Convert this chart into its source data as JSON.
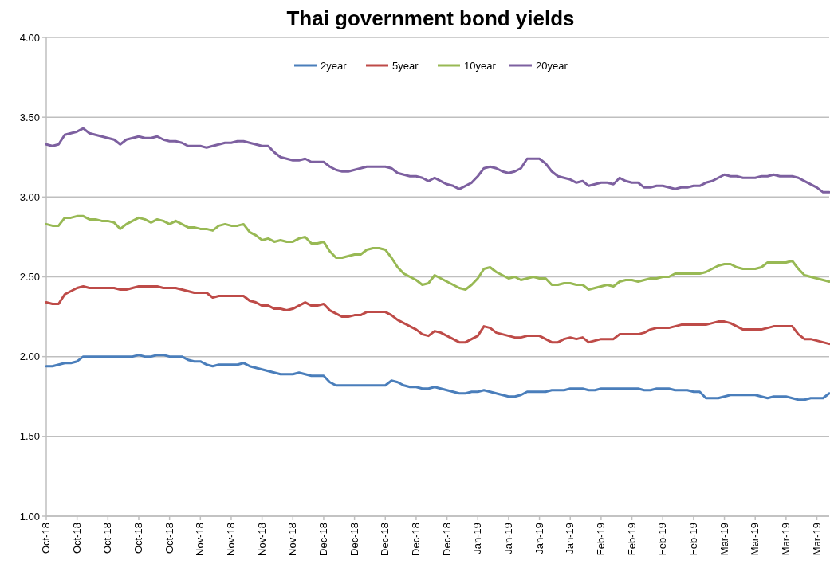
{
  "chart_data": {
    "type": "line",
    "title": "Thai government bond yields",
    "categories": [
      "Oct-18",
      null,
      null,
      null,
      null,
      "Oct-18",
      null,
      null,
      null,
      null,
      "Oct-18",
      null,
      null,
      null,
      null,
      "Oct-18",
      null,
      null,
      null,
      null,
      "Oct-18",
      null,
      null,
      null,
      null,
      "Nov-18",
      null,
      null,
      null,
      null,
      "Nov-18",
      null,
      null,
      null,
      null,
      "Nov-18",
      null,
      null,
      null,
      null,
      "Nov-18",
      null,
      null,
      null,
      null,
      "Dec-18",
      null,
      null,
      null,
      null,
      "Dec-18",
      null,
      null,
      null,
      null,
      "Dec-18",
      null,
      null,
      null,
      null,
      "Dec-18",
      null,
      null,
      null,
      null,
      "Dec-18",
      null,
      null,
      null,
      null,
      "Jan-19",
      null,
      null,
      null,
      null,
      "Jan-19",
      null,
      null,
      null,
      null,
      "Jan-19",
      null,
      null,
      null,
      null,
      "Jan-19",
      null,
      null,
      null,
      null,
      "Feb-19",
      null,
      null,
      null,
      null,
      "Feb-19",
      null,
      null,
      null,
      null,
      "Feb-19",
      null,
      null,
      null,
      null,
      "Feb-19",
      null,
      null,
      null,
      null,
      "Mar-19",
      null,
      null,
      null,
      null,
      "Mar-19",
      null,
      null,
      null,
      null,
      "Mar-19",
      null,
      null,
      null,
      null,
      "Mar-19",
      null,
      null
    ],
    "series": [
      {
        "name": "2year",
        "color": "#4a7ebb",
        "values": [
          1.94,
          1.94,
          1.95,
          1.96,
          1.96,
          1.97,
          2.0,
          2.0,
          2.0,
          2.0,
          2.0,
          2.0,
          2.0,
          2.0,
          2.0,
          2.01,
          2.0,
          2.0,
          2.01,
          2.01,
          2.0,
          2.0,
          2.0,
          1.98,
          1.97,
          1.97,
          1.95,
          1.94,
          1.95,
          1.95,
          1.95,
          1.95,
          1.96,
          1.94,
          1.93,
          1.92,
          1.91,
          1.9,
          1.89,
          1.89,
          1.89,
          1.9,
          1.89,
          1.88,
          1.88,
          1.88,
          1.84,
          1.82,
          1.82,
          1.82,
          1.82,
          1.82,
          1.82,
          1.82,
          1.82,
          1.82,
          1.85,
          1.84,
          1.82,
          1.81,
          1.81,
          1.8,
          1.8,
          1.81,
          1.8,
          1.79,
          1.78,
          1.77,
          1.77,
          1.78,
          1.78,
          1.79,
          1.78,
          1.77,
          1.76,
          1.75,
          1.75,
          1.76,
          1.78,
          1.78,
          1.78,
          1.78,
          1.79,
          1.79,
          1.79,
          1.8,
          1.8,
          1.8,
          1.79,
          1.79,
          1.8,
          1.8,
          1.8,
          1.8,
          1.8,
          1.8,
          1.8,
          1.79,
          1.79,
          1.8,
          1.8,
          1.8,
          1.79,
          1.79,
          1.79,
          1.78,
          1.78,
          1.74,
          1.74,
          1.74,
          1.75,
          1.76,
          1.76,
          1.76,
          1.76,
          1.76,
          1.75,
          1.74,
          1.75,
          1.75,
          1.75,
          1.74,
          1.73,
          1.73,
          1.74,
          1.74,
          1.74,
          1.77
        ]
      },
      {
        "name": "5year",
        "color": "#be4b48",
        "values": [
          2.34,
          2.33,
          2.33,
          2.39,
          2.41,
          2.43,
          2.44,
          2.43,
          2.43,
          2.43,
          2.43,
          2.43,
          2.42,
          2.42,
          2.43,
          2.44,
          2.44,
          2.44,
          2.44,
          2.43,
          2.43,
          2.43,
          2.42,
          2.41,
          2.4,
          2.4,
          2.4,
          2.37,
          2.38,
          2.38,
          2.38,
          2.38,
          2.38,
          2.35,
          2.34,
          2.32,
          2.32,
          2.3,
          2.3,
          2.29,
          2.3,
          2.32,
          2.34,
          2.32,
          2.32,
          2.33,
          2.29,
          2.27,
          2.25,
          2.25,
          2.26,
          2.26,
          2.28,
          2.28,
          2.28,
          2.28,
          2.26,
          2.23,
          2.21,
          2.19,
          2.17,
          2.14,
          2.13,
          2.16,
          2.15,
          2.13,
          2.11,
          2.09,
          2.09,
          2.11,
          2.13,
          2.19,
          2.18,
          2.15,
          2.14,
          2.13,
          2.12,
          2.12,
          2.13,
          2.13,
          2.13,
          2.11,
          2.09,
          2.09,
          2.11,
          2.12,
          2.11,
          2.12,
          2.09,
          2.1,
          2.11,
          2.11,
          2.11,
          2.14,
          2.14,
          2.14,
          2.14,
          2.15,
          2.17,
          2.18,
          2.18,
          2.18,
          2.19,
          2.2,
          2.2,
          2.2,
          2.2,
          2.2,
          2.21,
          2.22,
          2.22,
          2.21,
          2.19,
          2.17,
          2.17,
          2.17,
          2.17,
          2.18,
          2.19,
          2.19,
          2.19,
          2.19,
          2.14,
          2.11,
          2.11,
          2.1,
          2.09,
          2.08
        ]
      },
      {
        "name": "10year",
        "color": "#98b954",
        "values": [
          2.83,
          2.82,
          2.82,
          2.87,
          2.87,
          2.88,
          2.88,
          2.86,
          2.86,
          2.85,
          2.85,
          2.84,
          2.8,
          2.83,
          2.85,
          2.87,
          2.86,
          2.84,
          2.86,
          2.85,
          2.83,
          2.85,
          2.83,
          2.81,
          2.81,
          2.8,
          2.8,
          2.79,
          2.82,
          2.83,
          2.82,
          2.82,
          2.83,
          2.78,
          2.76,
          2.73,
          2.74,
          2.72,
          2.73,
          2.72,
          2.72,
          2.74,
          2.75,
          2.71,
          2.71,
          2.72,
          2.66,
          2.62,
          2.62,
          2.63,
          2.64,
          2.64,
          2.67,
          2.68,
          2.68,
          2.67,
          2.62,
          2.56,
          2.52,
          2.5,
          2.48,
          2.45,
          2.46,
          2.51,
          2.49,
          2.47,
          2.45,
          2.43,
          2.42,
          2.45,
          2.49,
          2.55,
          2.56,
          2.53,
          2.51,
          2.49,
          2.5,
          2.48,
          2.49,
          2.5,
          2.49,
          2.49,
          2.45,
          2.45,
          2.46,
          2.46,
          2.45,
          2.45,
          2.42,
          2.43,
          2.44,
          2.45,
          2.44,
          2.47,
          2.48,
          2.48,
          2.47,
          2.48,
          2.49,
          2.49,
          2.5,
          2.5,
          2.52,
          2.52,
          2.52,
          2.52,
          2.52,
          2.53,
          2.55,
          2.57,
          2.58,
          2.58,
          2.56,
          2.55,
          2.55,
          2.55,
          2.56,
          2.59,
          2.59,
          2.59,
          2.59,
          2.6,
          2.55,
          2.51,
          2.5,
          2.49,
          2.48,
          2.47
        ]
      },
      {
        "name": "20year",
        "color": "#7d60a0",
        "values": [
          3.33,
          3.32,
          3.33,
          3.39,
          3.4,
          3.41,
          3.43,
          3.4,
          3.39,
          3.38,
          3.37,
          3.36,
          3.33,
          3.36,
          3.37,
          3.38,
          3.37,
          3.37,
          3.38,
          3.36,
          3.35,
          3.35,
          3.34,
          3.32,
          3.32,
          3.32,
          3.31,
          3.32,
          3.33,
          3.34,
          3.34,
          3.35,
          3.35,
          3.34,
          3.33,
          3.32,
          3.32,
          3.28,
          3.25,
          3.24,
          3.23,
          3.23,
          3.24,
          3.22,
          3.22,
          3.22,
          3.19,
          3.17,
          3.16,
          3.16,
          3.17,
          3.18,
          3.19,
          3.19,
          3.19,
          3.19,
          3.18,
          3.15,
          3.14,
          3.13,
          3.13,
          3.12,
          3.1,
          3.12,
          3.1,
          3.08,
          3.07,
          3.05,
          3.07,
          3.09,
          3.13,
          3.18,
          3.19,
          3.18,
          3.16,
          3.15,
          3.16,
          3.18,
          3.24,
          3.24,
          3.24,
          3.21,
          3.16,
          3.13,
          3.12,
          3.11,
          3.09,
          3.1,
          3.07,
          3.08,
          3.09,
          3.09,
          3.08,
          3.12,
          3.1,
          3.09,
          3.09,
          3.06,
          3.06,
          3.07,
          3.07,
          3.06,
          3.05,
          3.06,
          3.06,
          3.07,
          3.07,
          3.09,
          3.1,
          3.12,
          3.14,
          3.13,
          3.13,
          3.12,
          3.12,
          3.12,
          3.13,
          3.13,
          3.14,
          3.13,
          3.13,
          3.13,
          3.12,
          3.1,
          3.08,
          3.06,
          3.03,
          3.03
        ]
      }
    ],
    "ylim": [
      1,
      4
    ],
    "yticks": [
      {
        "value": 1,
        "label": "1.00"
      },
      {
        "value": 1.5,
        "label": "1.50"
      },
      {
        "value": 2,
        "label": "2.00"
      },
      {
        "value": 2.5,
        "label": "2.50"
      },
      {
        "value": 3,
        "label": "3.00"
      },
      {
        "value": 3.5,
        "label": "3.50"
      },
      {
        "value": 4,
        "label": "4.00"
      }
    ],
    "grid": "y",
    "legend": "top",
    "marker": "none",
    "line_style": "solid"
  }
}
